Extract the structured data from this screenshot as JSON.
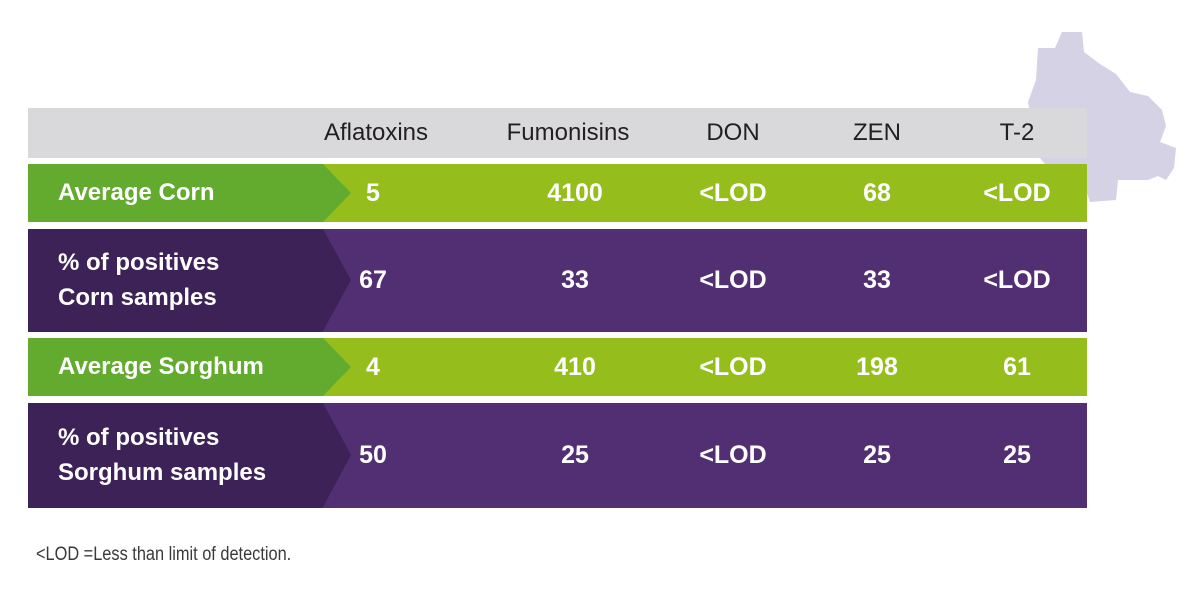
{
  "colors": {
    "header_bg": "#d9d9dc",
    "green_row": "#95be1c",
    "green_label": "#62ab2f",
    "purple_row": "#512f72",
    "purple_label": "#3d2257",
    "map_shape": "#d4d2e4"
  },
  "map": {
    "icon": "region-map-silhouette"
  },
  "chart_data": {
    "type": "table",
    "columns": [
      "Aflatoxins",
      "Fumonisins",
      "DON",
      "ZEN",
      "T-2"
    ],
    "rows": [
      {
        "label": "Average Corn",
        "style": "green",
        "values": [
          "5",
          "4100",
          "<LOD",
          "68",
          "<LOD"
        ]
      },
      {
        "label": "% of positives\nCorn samples",
        "style": "purple",
        "values": [
          "67",
          "33",
          "<LOD",
          "33",
          "<LOD"
        ]
      },
      {
        "label": "Average Sorghum",
        "style": "green",
        "values": [
          "4",
          "410",
          "<LOD",
          "198",
          "61"
        ]
      },
      {
        "label": "% of positives\nSorghum samples",
        "style": "purple",
        "values": [
          "50",
          "25",
          "<LOD",
          "25",
          "25"
        ]
      }
    ],
    "footnote": "<LOD =Less than limit of detection."
  }
}
